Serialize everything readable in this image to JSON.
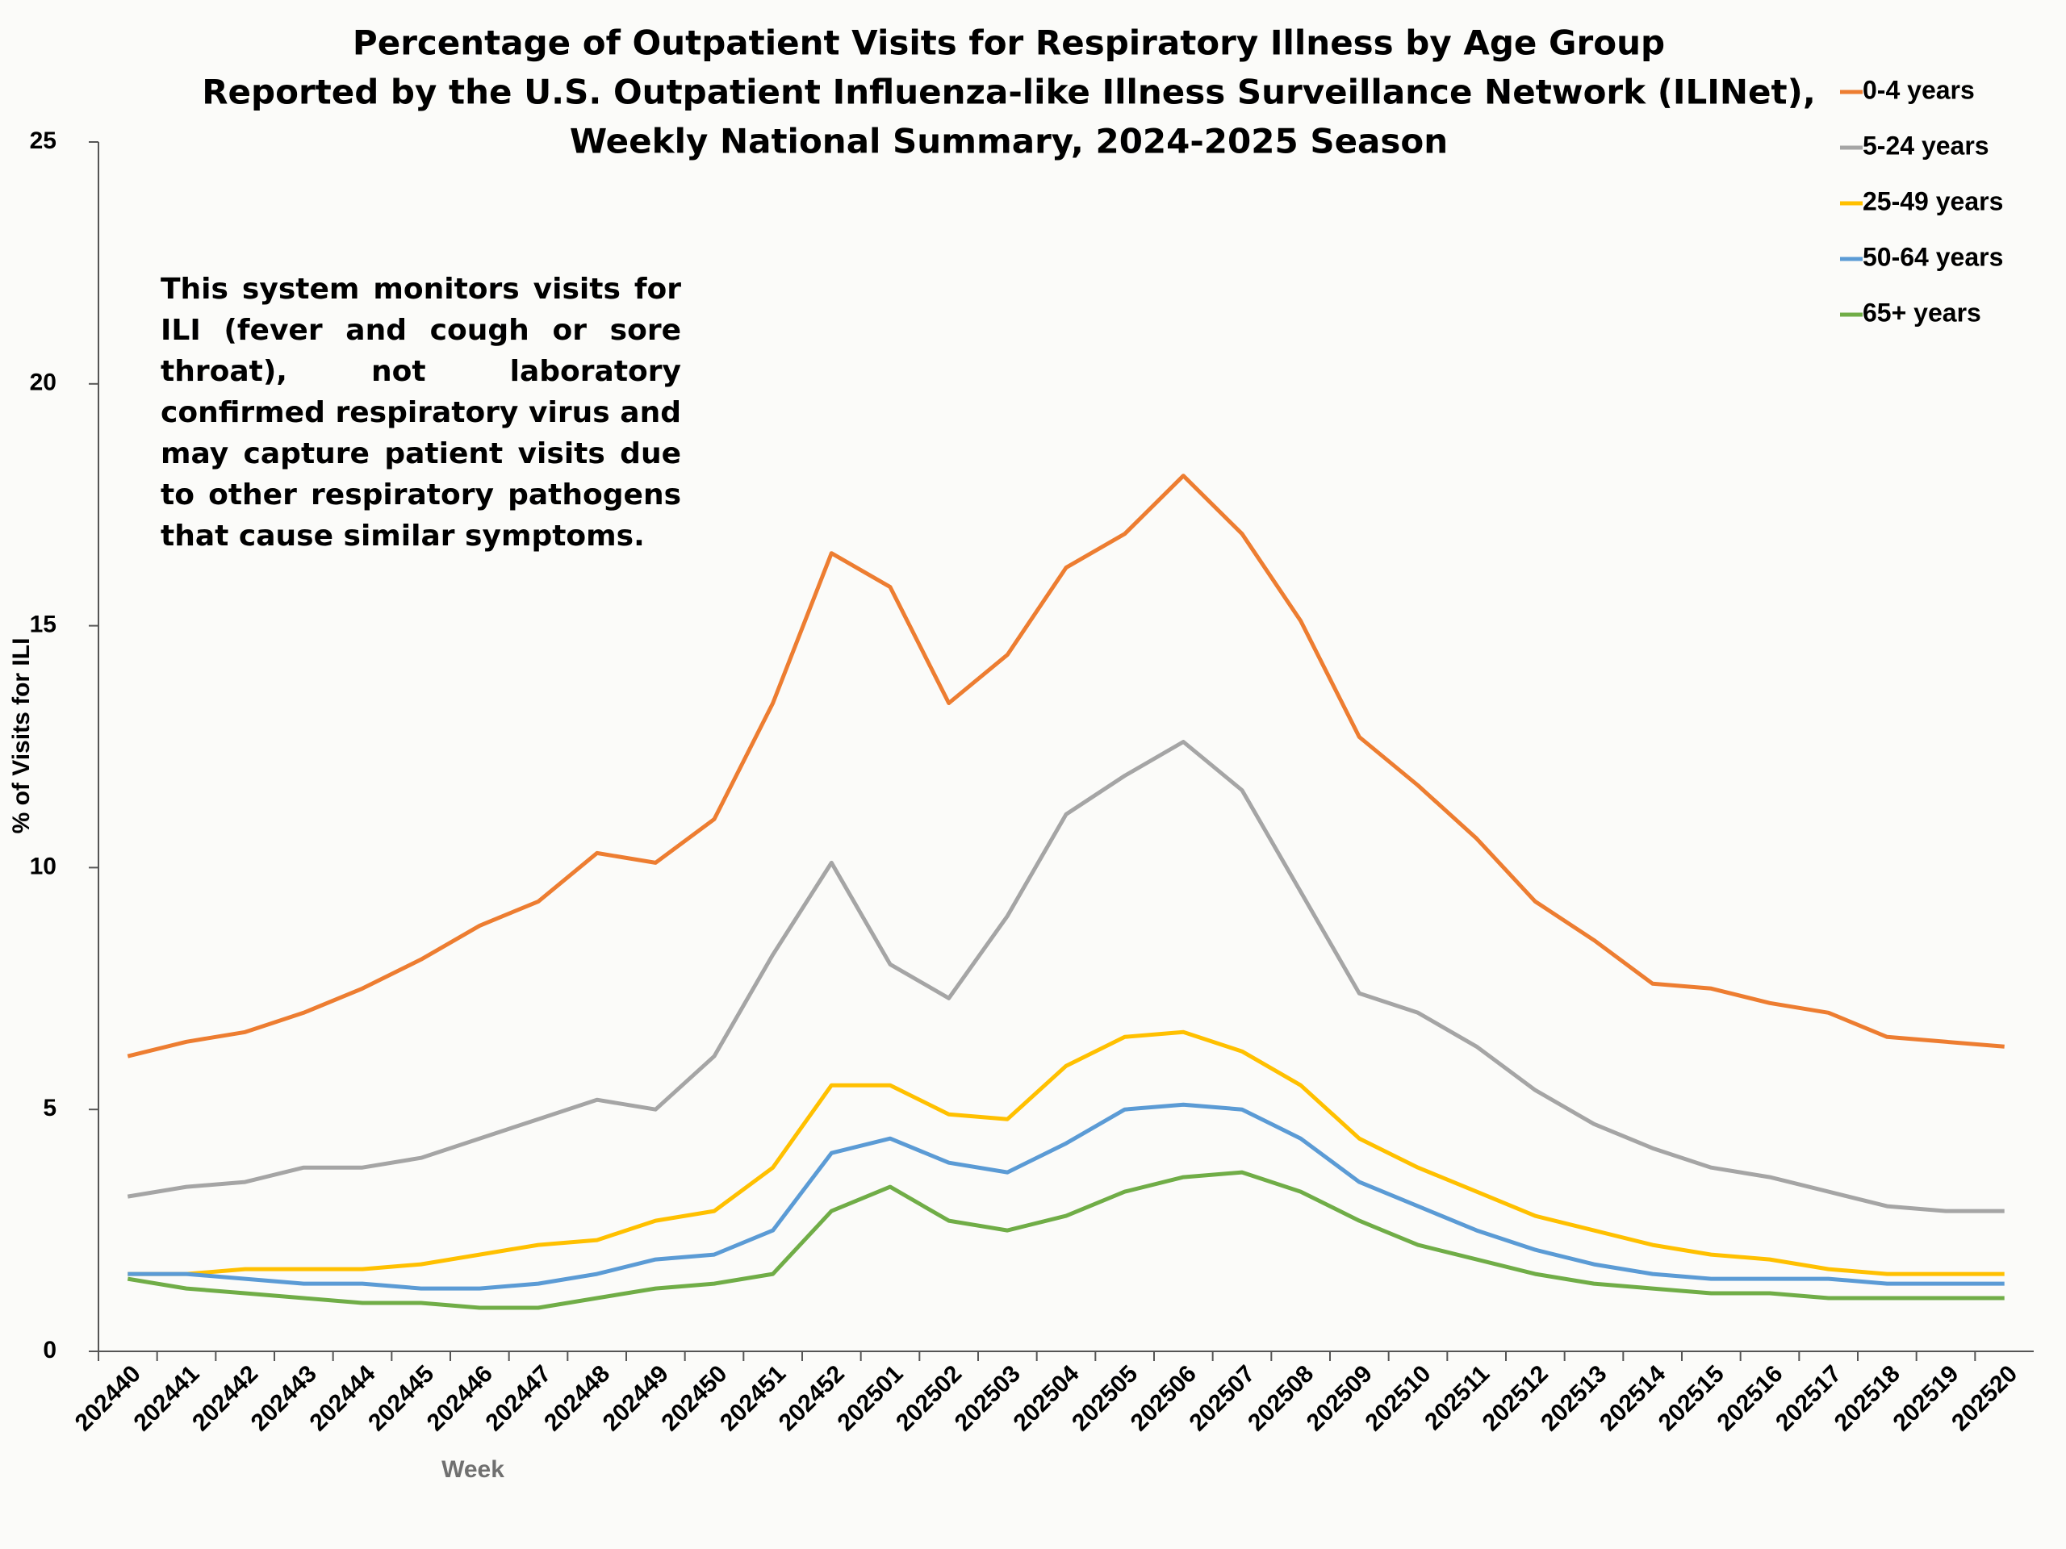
{
  "chart_data": {
    "type": "line",
    "title": [
      "Percentage of Outpatient Visits for Respiratory Illness by Age Group",
      "Reported by the U.S. Outpatient Influenza-like Illness Surveillance Network (ILINet),",
      "Weekly National Summary, 2024-2025 Season"
    ],
    "annotation": "This system monitors visits for ILI (fever and cough or sore throat), not laboratory confirmed respiratory virus and may capture patient visits due to other respiratory pathogens that cause similar symptoms.",
    "xlabel": "Week",
    "ylabel": "% of Visits for ILI",
    "categories": [
      "202440",
      "202441",
      "202442",
      "202443",
      "202444",
      "202445",
      "202446",
      "202447",
      "202448",
      "202449",
      "202450",
      "202451",
      "202452",
      "202501",
      "202502",
      "202503",
      "202504",
      "202505",
      "202506",
      "202507",
      "202508",
      "202509",
      "202510",
      "202511",
      "202512",
      "202513",
      "202514",
      "202515",
      "202516",
      "202517",
      "202518",
      "202519",
      "202520"
    ],
    "series": [
      {
        "name": "0-4 years",
        "color": "#ED7D31",
        "values": [
          6.1,
          6.4,
          6.6,
          7.0,
          7.5,
          8.1,
          8.8,
          9.3,
          10.3,
          10.1,
          11.0,
          13.4,
          16.5,
          15.8,
          13.4,
          14.4,
          16.2,
          16.9,
          18.1,
          16.9,
          15.1,
          12.7,
          11.7,
          10.6,
          9.3,
          8.5,
          7.6,
          7.5,
          7.2,
          7.0,
          6.5,
          6.4,
          6.3
        ]
      },
      {
        "name": "5-24 years",
        "color": "#A5A5A5",
        "values": [
          3.2,
          3.4,
          3.5,
          3.8,
          3.8,
          4.0,
          4.4,
          4.8,
          5.2,
          5.0,
          6.1,
          8.2,
          10.1,
          8.0,
          7.3,
          9.0,
          11.1,
          11.9,
          12.6,
          11.6,
          9.5,
          7.4,
          7.0,
          6.3,
          5.4,
          4.7,
          4.2,
          3.8,
          3.6,
          3.3,
          3.0,
          2.9,
          2.9
        ]
      },
      {
        "name": "25-49 years",
        "color": "#FFC000",
        "values": [
          1.6,
          1.6,
          1.7,
          1.7,
          1.7,
          1.8,
          2.0,
          2.2,
          2.3,
          2.7,
          2.9,
          3.8,
          5.5,
          5.5,
          4.9,
          4.8,
          5.9,
          6.5,
          6.6,
          6.2,
          5.5,
          4.4,
          3.8,
          3.3,
          2.8,
          2.5,
          2.2,
          2.0,
          1.9,
          1.7,
          1.6,
          1.6,
          1.6
        ]
      },
      {
        "name": "50-64 years",
        "color": "#5B9BD5",
        "values": [
          1.6,
          1.6,
          1.5,
          1.4,
          1.4,
          1.3,
          1.3,
          1.4,
          1.6,
          1.9,
          2.0,
          2.5,
          4.1,
          4.4,
          3.9,
          3.7,
          4.3,
          5.0,
          5.1,
          5.0,
          4.4,
          3.5,
          3.0,
          2.5,
          2.1,
          1.8,
          1.6,
          1.5,
          1.5,
          1.5,
          1.4,
          1.4,
          1.4
        ]
      },
      {
        "name": "65+ years",
        "color": "#70AD47",
        "values": [
          1.5,
          1.3,
          1.2,
          1.1,
          1.0,
          1.0,
          0.9,
          0.9,
          1.1,
          1.3,
          1.4,
          1.6,
          2.9,
          3.4,
          2.7,
          2.5,
          2.8,
          3.3,
          3.6,
          3.7,
          3.3,
          2.7,
          2.2,
          1.9,
          1.6,
          1.4,
          1.3,
          1.2,
          1.2,
          1.1,
          1.1,
          1.1,
          1.1
        ]
      }
    ],
    "ylim": [
      0,
      25
    ],
    "yticks": [
      0,
      5,
      10,
      15,
      20,
      25
    ],
    "grid": false,
    "legend": "top-right"
  }
}
